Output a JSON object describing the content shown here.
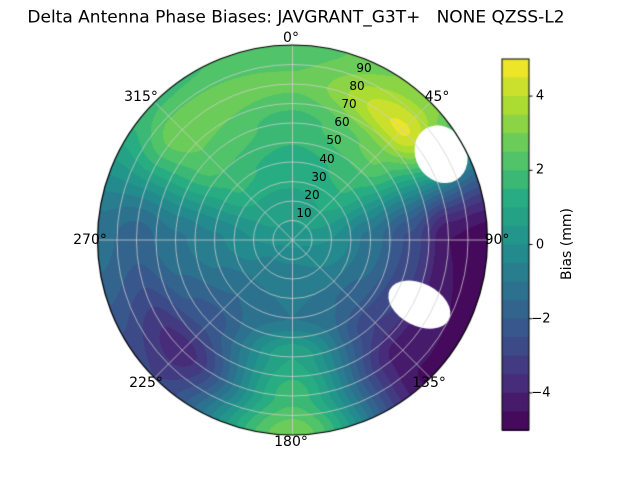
{
  "chart_data": {
    "type": "heatmap",
    "projection": "polar",
    "title": "Delta Antenna Phase Biases: JAVGRANT_G3T+   NONE QZSS-L2",
    "azimuth_tick_labels": [
      "0°",
      "45°",
      "90°",
      "135°",
      "180°",
      "225°",
      "270°",
      "315°"
    ],
    "radial_tick_labels": [
      "10",
      "20",
      "30",
      "40",
      "50",
      "60",
      "70",
      "80",
      "90"
    ],
    "radial_tick_values": [
      10,
      20,
      30,
      40,
      50,
      60,
      70,
      80,
      90
    ],
    "radial_max": 100,
    "colormap": "viridis",
    "colorbar": {
      "label": "Bias (mm)",
      "tick_labels": [
        "4",
        "2",
        "0",
        "−2",
        "−4"
      ],
      "tick_values": [
        4,
        2,
        0,
        -2,
        -4
      ],
      "min": -5,
      "max": 5,
      "levels_step": 0.5
    },
    "grid": {
      "azimuth_deg": [
        0,
        45,
        90,
        135,
        180,
        225,
        270,
        315
      ],
      "radius": [
        0,
        20,
        40,
        60,
        80,
        100
      ],
      "bias_mm": [
        [
          0.2,
          0.9,
          1.3,
          1.8,
          2.6,
          2.2
        ],
        [
          0.2,
          1.0,
          1.6,
          2.6,
          4.6,
          3.2
        ],
        [
          0.2,
          0.0,
          -1.2,
          -2.6,
          -4.5,
          -4.8
        ],
        [
          0.1,
          -0.5,
          -1.6,
          -3.0,
          -4.3,
          -4.6
        ],
        [
          0.1,
          -0.8,
          -1.0,
          1.0,
          1.8,
          2.9
        ],
        [
          0.1,
          -0.7,
          -1.5,
          -2.3,
          -3.8,
          -3.0
        ],
        [
          0.2,
          0.0,
          -0.6,
          -1.1,
          -1.8,
          -1.3
        ],
        [
          0.2,
          0.8,
          1.6,
          2.4,
          2.9,
          1.9
        ]
      ]
    },
    "masked_regions": [
      {
        "azimuth_deg": 60,
        "radius": 88,
        "radial_halfwidth": 13,
        "tangential_halfwidth_deg": 10
      },
      {
        "azimuth_deg": 117,
        "radius": 73,
        "radial_halfwidth": 17,
        "tangential_halfwidth_deg": 8.5
      }
    ],
    "grid_color": "#d0d0d0",
    "outline_color": "#000000"
  }
}
